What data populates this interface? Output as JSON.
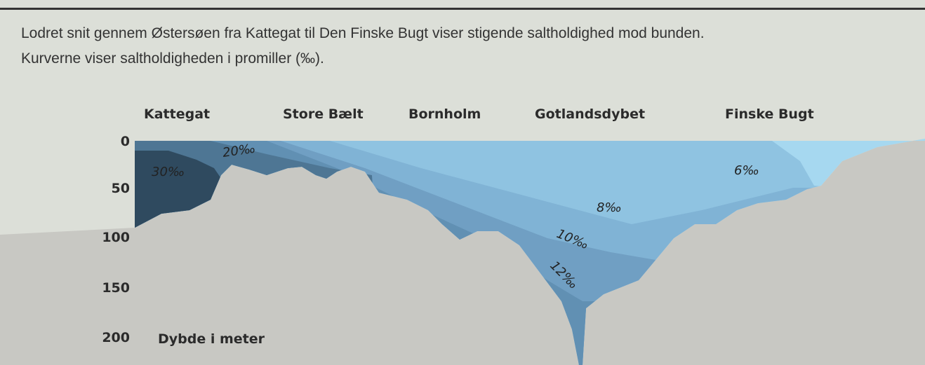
{
  "caption": [
    "Lodret snit gennem Østersøen fra Kattegat til Den Finske Bugt viser stigende saltholdighed mod bunden.",
    "Kurverne viser saltholdigheden i promiller (‰)."
  ],
  "locations": [
    "Kattegat",
    "Store Bælt",
    "Bornholm",
    "Gotlandsdybet",
    "Finske Bugt"
  ],
  "depth_axis": {
    "ticks": [
      0,
      50,
      100,
      150,
      200
    ],
    "label": "Dybde i meter"
  },
  "salinity_labels": [
    "30‰",
    "20‰",
    "6‰",
    "8‰",
    "10‰",
    "12‰"
  ]
}
